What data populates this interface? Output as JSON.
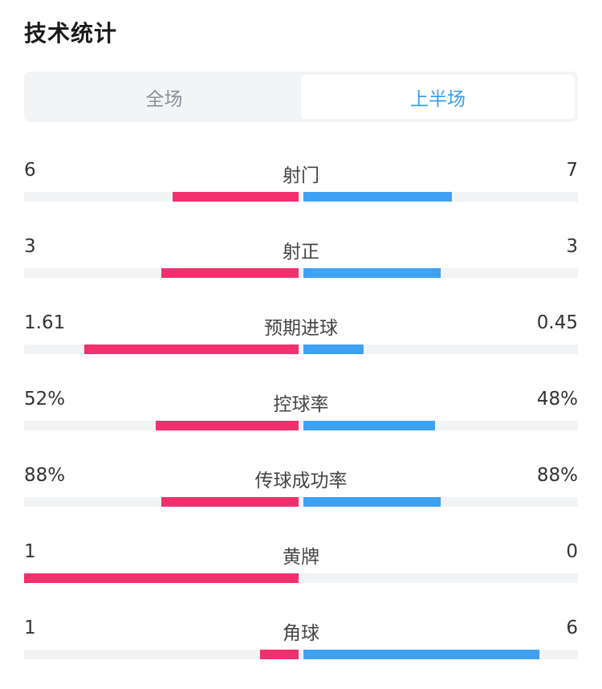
{
  "title": "技术统计",
  "tabs": [
    {
      "label": "全场",
      "active": false
    },
    {
      "label": "上半场",
      "active": true
    }
  ],
  "colors": {
    "home": "#f2306e",
    "away": "#3fa1f2",
    "track": "#f2f3f5",
    "active_tab": "#3b9cf0"
  },
  "stats": [
    {
      "label": "射门",
      "home": "6",
      "away": "7",
      "home_share": 0.46,
      "away_share": 0.54
    },
    {
      "label": "射正",
      "home": "3",
      "away": "3",
      "home_share": 0.5,
      "away_share": 0.5
    },
    {
      "label": "预期进球",
      "home": "1.61",
      "away": "0.45",
      "home_share": 0.78,
      "away_share": 0.22
    },
    {
      "label": "控球率",
      "home": "52%",
      "away": "48%",
      "home_share": 0.52,
      "away_share": 0.48
    },
    {
      "label": "传球成功率",
      "home": "88%",
      "away": "88%",
      "home_share": 0.5,
      "away_share": 0.5
    },
    {
      "label": "黄牌",
      "home": "1",
      "away": "0",
      "home_share": 1.0,
      "away_share": 0.0
    },
    {
      "label": "角球",
      "home": "1",
      "away": "6",
      "home_share": 0.14,
      "away_share": 0.86
    }
  ]
}
